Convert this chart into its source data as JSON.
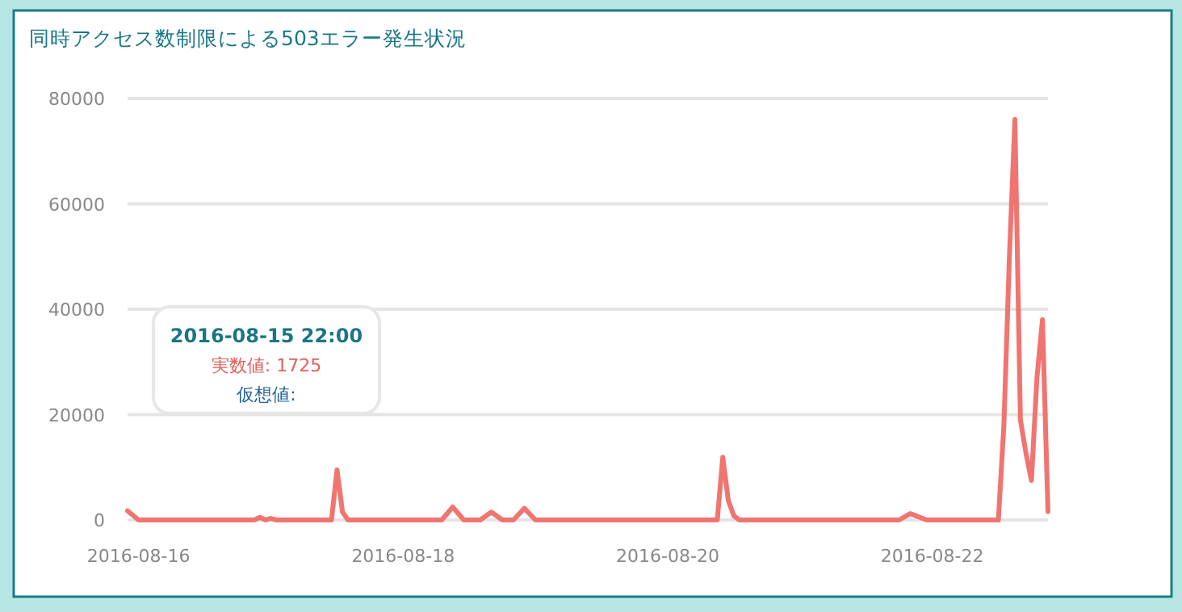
{
  "chart_data": {
    "type": "line",
    "title": "同時アクセス数制限による503エラー発生状況",
    "x": [
      "2016-08-15T22:00",
      "2016-08-16T00:00",
      "2016-08-16T21:00",
      "2016-08-16T22:00",
      "2016-08-16T23:00",
      "2016-08-17T00:00",
      "2016-08-17T01:00",
      "2016-08-17T02:00",
      "2016-08-17T11:00",
      "2016-08-17T12:00",
      "2016-08-17T13:00",
      "2016-08-17T14:00",
      "2016-08-18T07:00",
      "2016-08-18T09:00",
      "2016-08-18T11:00",
      "2016-08-18T14:00",
      "2016-08-18T16:00",
      "2016-08-18T18:00",
      "2016-08-18T20:00",
      "2016-08-18T22:00",
      "2016-08-19T00:00",
      "2016-08-20T09:00",
      "2016-08-20T10:00",
      "2016-08-20T11:00",
      "2016-08-20T12:00",
      "2016-08-20T13:00",
      "2016-08-21T18:00",
      "2016-08-21T20:00",
      "2016-08-21T23:00",
      "2016-08-22T12:00",
      "2016-08-22T13:00",
      "2016-08-22T14:00",
      "2016-08-22T15:00",
      "2016-08-22T16:00",
      "2016-08-22T17:00",
      "2016-08-22T18:00",
      "2016-08-22T19:00",
      "2016-08-22T20:00",
      "2016-08-22T21:00"
    ],
    "series": [
      {
        "color": "#f07470",
        "values": [
          1725,
          0,
          0,
          500,
          0,
          300,
          0,
          0,
          0,
          9500,
          1500,
          0,
          0,
          2450,
          0,
          0,
          1500,
          0,
          0,
          2200,
          0,
          0,
          11900,
          3700,
          800,
          0,
          0,
          1200,
          0,
          0,
          18000,
          50000,
          76000,
          19000,
          12700,
          7500,
          27000,
          38000,
          1600
        ]
      }
    ],
    "xlim": [
      "2016-08-15T22:00",
      "2016-08-22T21:00"
    ],
    "xticks": [
      "2016-08-16",
      "2016-08-18",
      "2016-08-20",
      "2016-08-22"
    ],
    "ylim": [
      0,
      80000
    ],
    "yticks": [
      0,
      20000,
      40000,
      60000,
      80000
    ],
    "grid": "y",
    "marker": "none",
    "line_style": "solid",
    "annotations": [
      "2016-08-15 22:00",
      "実数値: 1725",
      "仮想値:"
    ]
  }
}
